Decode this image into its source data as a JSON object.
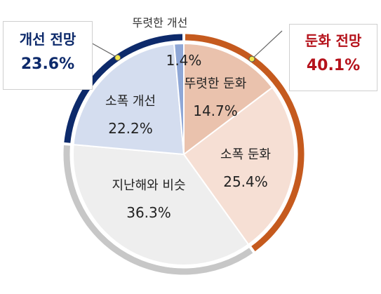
{
  "chart_data": {
    "type": "pie",
    "slices": [
      {
        "label": "뚜렷한 둔화",
        "value": 14.7,
        "display": "14.7%",
        "color": "#eac2ad"
      },
      {
        "label": "소폭 둔화",
        "value": 25.4,
        "display": "25.4%",
        "color": "#f6dfd4"
      },
      {
        "label": "지난해와 비슷",
        "value": 36.3,
        "display": "36.3%",
        "color": "#eeeeee"
      },
      {
        "label": "소폭 개선",
        "value": 22.2,
        "display": "22.2%",
        "color": "#d4ddef"
      },
      {
        "label": "뚜렷한 개선",
        "value": 1.4,
        "display": "1.4%",
        "color": "#8fa7d6"
      }
    ],
    "groups": [
      {
        "name": "둔화 전망",
        "value": "40.1%",
        "color": "#c55a1e"
      },
      {
        "name": "지난해와 비슷",
        "value": "36.3%",
        "color": "#c7c7c7"
      },
      {
        "name": "개선 전망",
        "value": "23.6%",
        "color": "#0d2a6b"
      }
    ]
  },
  "callouts": {
    "improve": {
      "title": "개선 전망",
      "value": "23.6%",
      "color": "#0d2a6b"
    },
    "slow": {
      "title": "둔화 전망",
      "value": "40.1%",
      "color": "#b5121b"
    }
  }
}
